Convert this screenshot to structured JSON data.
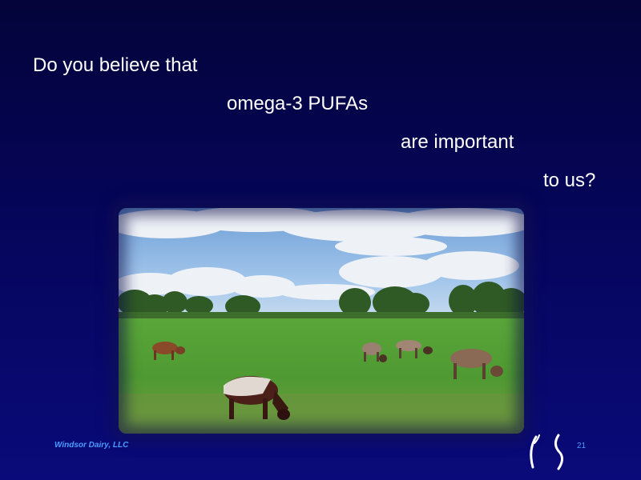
{
  "slide": {
    "question_lines": [
      "Do you believe that",
      "omega-3 PUFAs",
      "are important",
      "to us?"
    ],
    "footer_text": "Windsor Dairy, LLC",
    "page_number": "21"
  },
  "colors": {
    "background_top": "#04043a",
    "background_bottom": "#0a0a7a",
    "text": "#ffffff",
    "footer": "#4a9cff"
  },
  "photo": {
    "subject": "cattle grazing in green pasture under cloudy blue sky"
  },
  "logo": {
    "icon": "windsor-dairy-logo-icon"
  }
}
